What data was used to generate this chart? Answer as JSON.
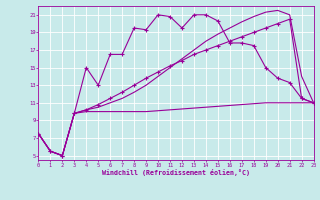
{
  "xlabel": "Windchill (Refroidissement éolien,°C)",
  "background_color": "#c8eaea",
  "line_color": "#990099",
  "grid_color": "#ffffff",
  "xlim": [
    0,
    23
  ],
  "ylim": [
    4.5,
    22.0
  ],
  "xticks": [
    0,
    1,
    2,
    3,
    4,
    5,
    6,
    7,
    8,
    9,
    10,
    11,
    12,
    13,
    14,
    15,
    16,
    17,
    18,
    19,
    20,
    21,
    22,
    23
  ],
  "yticks": [
    5,
    7,
    9,
    11,
    13,
    15,
    17,
    19,
    21
  ],
  "series": [
    {
      "x": [
        0,
        1,
        2,
        3,
        4,
        5,
        6,
        7,
        8,
        9,
        10,
        11,
        12,
        13,
        14,
        15,
        16,
        17,
        18,
        19,
        20,
        21,
        22,
        23
      ],
      "y": [
        7.5,
        5.5,
        5.0,
        9.8,
        10.0,
        10.0,
        10.0,
        10.0,
        10.0,
        10.0,
        10.1,
        10.2,
        10.3,
        10.4,
        10.5,
        10.6,
        10.7,
        10.8,
        10.9,
        11.0,
        11.0,
        11.0,
        11.0,
        11.0
      ],
      "marker": false,
      "lw": 0.8
    },
    {
      "x": [
        0,
        1,
        2,
        3,
        4,
        5,
        6,
        7,
        8,
        9,
        10,
        11,
        12,
        13,
        14,
        15,
        16,
        17,
        18,
        19,
        20,
        21,
        22,
        23
      ],
      "y": [
        7.5,
        5.5,
        5.0,
        9.8,
        10.2,
        10.5,
        11.0,
        11.5,
        12.2,
        13.0,
        14.0,
        15.0,
        16.0,
        17.0,
        18.0,
        18.8,
        19.5,
        20.2,
        20.8,
        21.3,
        21.5,
        21.0,
        14.0,
        11.0
      ],
      "marker": false,
      "lw": 0.8
    },
    {
      "x": [
        0,
        1,
        2,
        3,
        4,
        5,
        6,
        7,
        8,
        9,
        10,
        11,
        12,
        13,
        14,
        15,
        16,
        17,
        18,
        19,
        20,
        21,
        22,
        23
      ],
      "y": [
        7.5,
        5.5,
        5.0,
        9.8,
        15.0,
        13.0,
        16.5,
        16.5,
        19.5,
        19.3,
        21.0,
        20.8,
        19.5,
        21.0,
        21.0,
        20.3,
        17.8,
        17.8,
        17.5,
        15.0,
        13.8,
        13.3,
        11.5,
        11.0
      ],
      "marker": true,
      "lw": 0.8
    },
    {
      "x": [
        0,
        1,
        2,
        3,
        4,
        5,
        6,
        7,
        8,
        9,
        10,
        11,
        12,
        13,
        14,
        15,
        16,
        17,
        18,
        19,
        20,
        21,
        22,
        23
      ],
      "y": [
        7.5,
        5.5,
        5.0,
        9.8,
        10.2,
        10.8,
        11.5,
        12.2,
        13.0,
        13.8,
        14.5,
        15.2,
        15.8,
        16.5,
        17.0,
        17.5,
        18.0,
        18.5,
        19.0,
        19.5,
        20.0,
        20.5,
        11.5,
        11.0
      ],
      "marker": true,
      "lw": 0.8
    }
  ]
}
